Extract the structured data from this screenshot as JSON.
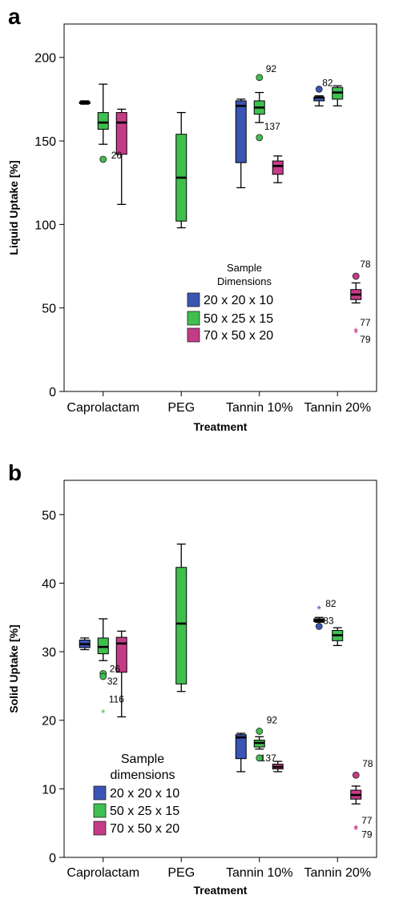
{
  "chart_data": [
    {
      "panel_letter": "a",
      "type": "box",
      "categories": [
        "Caprolactam",
        "PEG",
        "Tannin 10%",
        "Tannin 20%"
      ],
      "xlabel": "Treatment",
      "ylabel": "Liquid Uptake [%]",
      "ylim": [
        0,
        220
      ],
      "yticks": [
        "0",
        "50",
        "100",
        "150",
        "200"
      ],
      "grid": false,
      "legend": {
        "title_lines": [
          "Sample",
          "Dimensions"
        ],
        "placement": "center",
        "entries": [
          "20 x 20 x 10",
          "50 x 25 x 15",
          "70 x 50 x 20"
        ]
      },
      "colors": [
        "#3a55b3",
        "#3fbf4e",
        "#c63b87"
      ],
      "boxes": [
        {
          "category": "Caprolactam",
          "series": 0,
          "min": 172,
          "q1": 172.5,
          "median": 173,
          "q3": 173.5,
          "max": 174
        },
        {
          "category": "Caprolactam",
          "series": 1,
          "min": 148,
          "q1": 157,
          "median": 161,
          "q3": 167,
          "max": 184
        },
        {
          "category": "Caprolactam",
          "series": 2,
          "min": 112,
          "q1": 142,
          "median": 161,
          "q3": 167,
          "max": 169
        },
        {
          "category": "PEG",
          "series": 1,
          "min": 98,
          "q1": 102,
          "median": 128,
          "q3": 154,
          "max": 167
        },
        {
          "category": "Tannin 10%",
          "series": 0,
          "min": 122,
          "q1": 137,
          "median": 171,
          "q3": 174,
          "max": 175
        },
        {
          "category": "Tannin 10%",
          "series": 1,
          "min": 161,
          "q1": 166,
          "median": 170,
          "q3": 174,
          "max": 179
        },
        {
          "category": "Tannin 10%",
          "series": 2,
          "min": 125,
          "q1": 130,
          "median": 135,
          "q3": 138,
          "max": 141
        },
        {
          "category": "Tannin 20%",
          "series": 0,
          "min": 171,
          "q1": 174,
          "median": 176,
          "q3": 176,
          "max": 177
        },
        {
          "category": "Tannin 20%",
          "series": 1,
          "min": 171,
          "q1": 175,
          "median": 179,
          "q3": 182,
          "max": 183
        },
        {
          "category": "Tannin 20%",
          "series": 2,
          "min": 53,
          "q1": 55,
          "median": 58,
          "q3": 61,
          "max": 65
        }
      ],
      "outliers": [
        {
          "category": "Caprolactam",
          "series": 1,
          "value": 139,
          "marker": "circle",
          "label": "26"
        },
        {
          "category": "Tannin 10%",
          "series": 1,
          "value": 188,
          "marker": "circle",
          "label": "92"
        },
        {
          "category": "Tannin 10%",
          "series": 1,
          "value": 152,
          "marker": "circle",
          "label": "137"
        },
        {
          "category": "Tannin 20%",
          "series": 0,
          "value": 181,
          "marker": "circle",
          "label": "82"
        },
        {
          "category": "Tannin 20%",
          "series": 2,
          "value": 69,
          "marker": "circle",
          "label": "78"
        },
        {
          "category": "Tannin 20%",
          "series": 2,
          "value": 36,
          "marker": "star",
          "label": "77"
        },
        {
          "category": "Tannin 20%",
          "series": 2,
          "value": 35,
          "marker": "star",
          "label": "79"
        }
      ]
    },
    {
      "panel_letter": "b",
      "type": "box",
      "categories": [
        "Caprolactam",
        "PEG",
        "Tannin 10%",
        "Tannin 20%"
      ],
      "xlabel": "Treatment",
      "ylabel": "Solid Uptake [%]",
      "ylim": [
        0,
        55
      ],
      "yticks": [
        "0",
        "10",
        "20",
        "30",
        "40",
        "50"
      ],
      "grid": false,
      "legend": {
        "title_lines": [
          "Sample",
          "dimensions"
        ],
        "placement": "bottom-left",
        "entries": [
          "20 x 20 x 10",
          "50 x 25 x 15",
          "70 x 50 x 20"
        ]
      },
      "colors": [
        "#3a55b3",
        "#3fbf4e",
        "#c63b87"
      ],
      "boxes": [
        {
          "category": "Caprolactam",
          "series": 0,
          "min": 30.3,
          "q1": 30.6,
          "median": 31.1,
          "q3": 31.7,
          "max": 32
        },
        {
          "category": "Caprolactam",
          "series": 1,
          "min": 28.7,
          "q1": 29.7,
          "median": 30.7,
          "q3": 32,
          "max": 34.8
        },
        {
          "category": "Caprolactam",
          "series": 2,
          "min": 20.5,
          "q1": 27,
          "median": 31.2,
          "q3": 32.1,
          "max": 33
        },
        {
          "category": "PEG",
          "series": 1,
          "min": 24.2,
          "q1": 25.3,
          "median": 34.1,
          "q3": 42.3,
          "max": 45.7
        },
        {
          "category": "Tannin 10%",
          "series": 0,
          "min": 12.5,
          "q1": 14.4,
          "median": 17.5,
          "q3": 17.9,
          "max": 18.1
        },
        {
          "category": "Tannin 10%",
          "series": 1,
          "min": 15.8,
          "q1": 16.1,
          "median": 16.7,
          "q3": 17.1,
          "max": 17.6
        },
        {
          "category": "Tannin 10%",
          "series": 2,
          "min": 12.5,
          "q1": 12.9,
          "median": 13.2,
          "q3": 13.6,
          "max": 14
        },
        {
          "category": "Tannin 20%",
          "series": 0,
          "min": 34.3,
          "q1": 34.4,
          "median": 34.6,
          "q3": 34.8,
          "max": 35
        },
        {
          "category": "Tannin 20%",
          "series": 1,
          "min": 30.9,
          "q1": 31.6,
          "median": 32.4,
          "q3": 33.1,
          "max": 33.5
        },
        {
          "category": "Tannin 20%",
          "series": 2,
          "min": 7.8,
          "q1": 8.5,
          "median": 9.1,
          "q3": 9.8,
          "max": 10.4
        }
      ],
      "outliers": [
        {
          "category": "Caprolactam",
          "series": 1,
          "value": 26.8,
          "marker": "circle",
          "label": "26"
        },
        {
          "category": "Caprolactam",
          "series": 1,
          "value": 26.4,
          "marker": "circle",
          "label": "32"
        },
        {
          "category": "Caprolactam",
          "series": 1,
          "value": 21.1,
          "marker": "star",
          "label": "116"
        },
        {
          "category": "Tannin 10%",
          "series": 1,
          "value": 18.4,
          "marker": "circle",
          "label": "92"
        },
        {
          "category": "Tannin 10%",
          "series": 1,
          "value": 14.5,
          "marker": "circle",
          "label": "137"
        },
        {
          "category": "Tannin 20%",
          "series": 0,
          "value": 36.2,
          "marker": "star",
          "label": "82"
        },
        {
          "category": "Tannin 20%",
          "series": 0,
          "value": 33.7,
          "marker": "circle",
          "label": "83"
        },
        {
          "category": "Tannin 20%",
          "series": 2,
          "value": 12,
          "marker": "circle",
          "label": "78"
        },
        {
          "category": "Tannin 20%",
          "series": 2,
          "value": 4.2,
          "marker": "star",
          "label": "77"
        },
        {
          "category": "Tannin 20%",
          "series": 2,
          "value": 4,
          "marker": "star",
          "label": "79"
        }
      ]
    }
  ]
}
